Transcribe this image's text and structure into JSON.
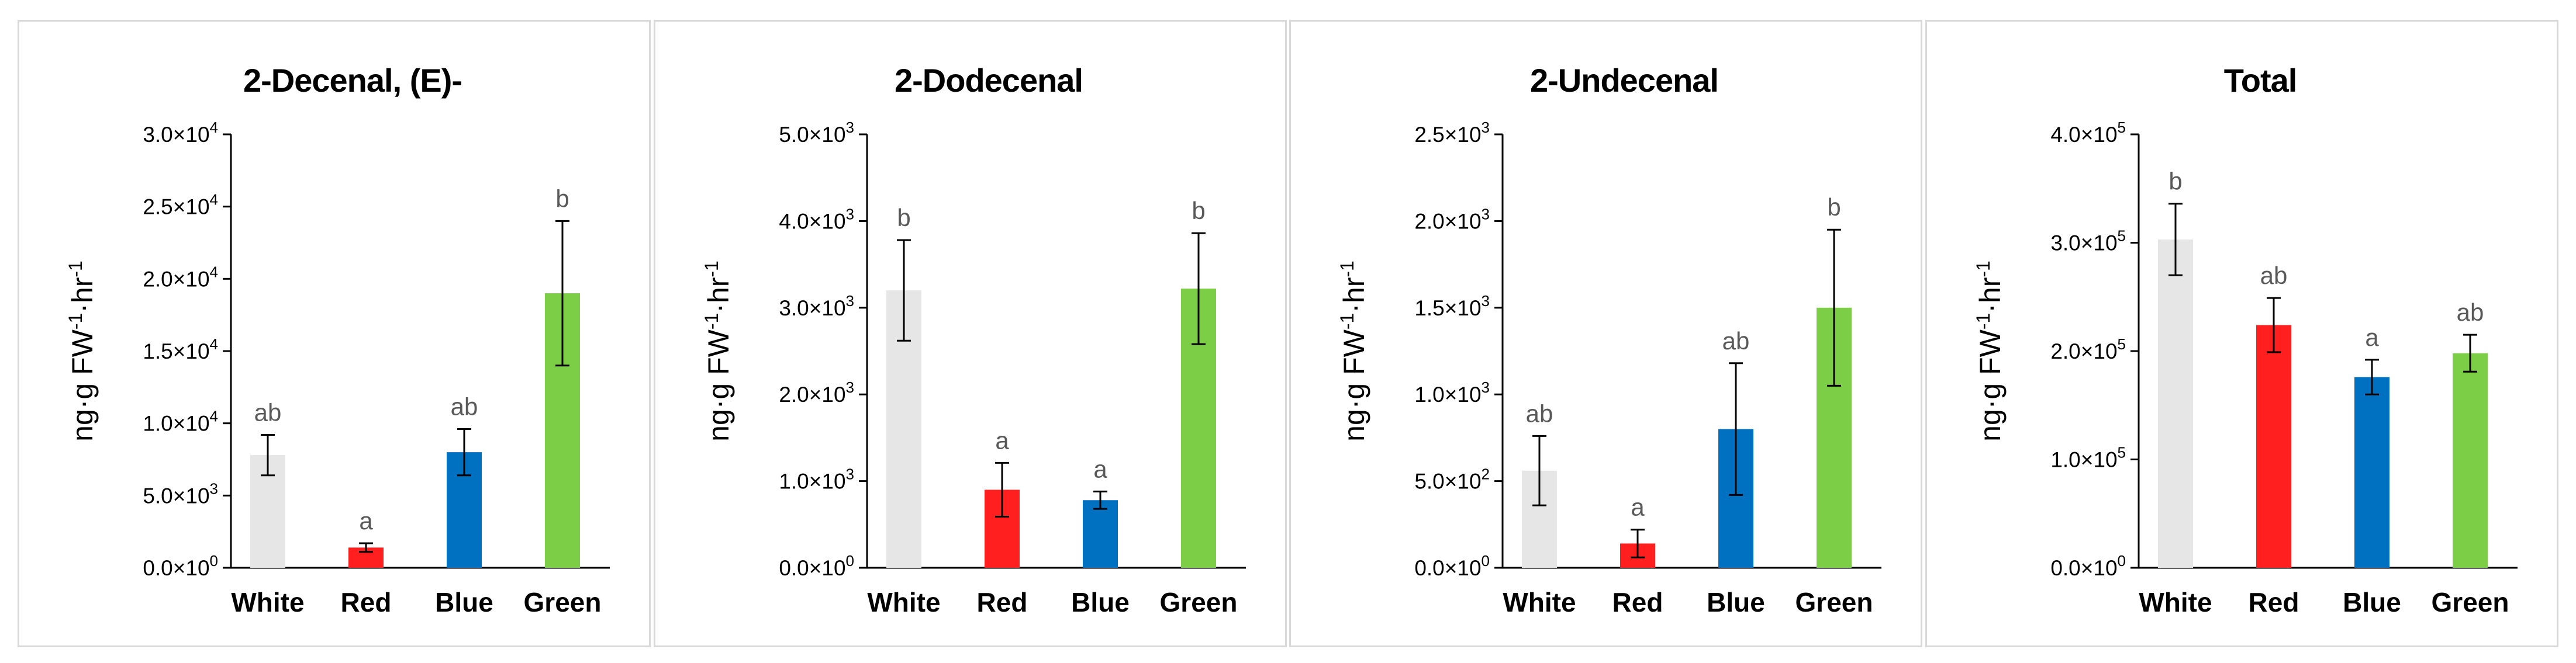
{
  "chart_data": [
    {
      "type": "bar",
      "title": "2-Decenal, (E)-",
      "ylabel": "ng·g FW-1·hr-1",
      "categories": [
        "White",
        "Red",
        "Blue",
        "Green"
      ],
      "values": [
        7800,
        1400,
        8000,
        19000
      ],
      "errors": [
        1400,
        300,
        1600,
        5000
      ],
      "significance": [
        "ab",
        "a",
        "ab",
        "b"
      ],
      "ylim": [
        0,
        30000
      ],
      "yticks": [
        0,
        5000,
        10000,
        15000,
        20000,
        25000,
        30000
      ],
      "ytick_labels": [
        {
          "mant": "0.0×10",
          "exp": "0"
        },
        {
          "mant": "5.0×10",
          "exp": "3"
        },
        {
          "mant": "1.0×10",
          "exp": "4"
        },
        {
          "mant": "1.5×10",
          "exp": "4"
        },
        {
          "mant": "2.0×10",
          "exp": "4"
        },
        {
          "mant": "2.5×10",
          "exp": "4"
        },
        {
          "mant": "3.0×10",
          "exp": "4"
        }
      ],
      "colors": [
        "#e7e6e6",
        "#ff1f1f",
        "#0070c0",
        "#7cce47"
      ],
      "grid": false,
      "legend": "none"
    },
    {
      "type": "bar",
      "title": "2-Dodecenal",
      "ylabel": "ng·g FW-1·hr-1",
      "categories": [
        "White",
        "Red",
        "Blue",
        "Green"
      ],
      "values": [
        3200,
        900,
        780,
        3220
      ],
      "errors": [
        580,
        310,
        100,
        640
      ],
      "significance": [
        "b",
        "a",
        "a",
        "b"
      ],
      "ylim": [
        0,
        5000
      ],
      "yticks": [
        0,
        1000,
        2000,
        3000,
        4000,
        5000
      ],
      "ytick_labels": [
        {
          "mant": "0.0×10",
          "exp": "0"
        },
        {
          "mant": "1.0×10",
          "exp": "3"
        },
        {
          "mant": "2.0×10",
          "exp": "3"
        },
        {
          "mant": "3.0×10",
          "exp": "3"
        },
        {
          "mant": "4.0×10",
          "exp": "3"
        },
        {
          "mant": "5.0×10",
          "exp": "3"
        }
      ],
      "colors": [
        "#e7e6e6",
        "#ff1f1f",
        "#0070c0",
        "#7cce47"
      ],
      "grid": false,
      "legend": "none"
    },
    {
      "type": "bar",
      "title": "2-Undecenal",
      "ylabel": "ng·g FW-1·hr-1",
      "categories": [
        "White",
        "Red",
        "Blue",
        "Green"
      ],
      "values": [
        560,
        140,
        800,
        1500
      ],
      "errors": [
        200,
        80,
        380,
        450
      ],
      "significance": [
        "ab",
        "a",
        "ab",
        "b"
      ],
      "ylim": [
        0,
        2500
      ],
      "yticks": [
        0,
        500,
        1000,
        1500,
        2000,
        2500
      ],
      "ytick_labels": [
        {
          "mant": "0.0×10",
          "exp": "0"
        },
        {
          "mant": "5.0×10",
          "exp": "2"
        },
        {
          "mant": "1.0×10",
          "exp": "3"
        },
        {
          "mant": "1.5×10",
          "exp": "3"
        },
        {
          "mant": "2.0×10",
          "exp": "3"
        },
        {
          "mant": "2.5×10",
          "exp": "3"
        }
      ],
      "colors": [
        "#e7e6e6",
        "#ff1f1f",
        "#0070c0",
        "#7cce47"
      ],
      "grid": false,
      "legend": "none"
    },
    {
      "type": "bar",
      "title": "Total",
      "ylabel": "ng·g FW-1·hr-1",
      "categories": [
        "White",
        "Red",
        "Blue",
        "Green"
      ],
      "values": [
        303000,
        224000,
        176000,
        198000
      ],
      "errors": [
        33000,
        25000,
        16000,
        17000
      ],
      "significance": [
        "b",
        "ab",
        "a",
        "ab"
      ],
      "ylim": [
        0,
        400000
      ],
      "yticks": [
        0,
        100000,
        200000,
        300000,
        400000
      ],
      "ytick_labels": [
        {
          "mant": "0.0×10",
          "exp": "0"
        },
        {
          "mant": "1.0×10",
          "exp": "5"
        },
        {
          "mant": "2.0×10",
          "exp": "5"
        },
        {
          "mant": "3.0×10",
          "exp": "5"
        },
        {
          "mant": "4.0×10",
          "exp": "5"
        }
      ],
      "colors": [
        "#e7e6e6",
        "#ff1f1f",
        "#0070c0",
        "#7cce47"
      ],
      "grid": false,
      "legend": "none"
    }
  ]
}
